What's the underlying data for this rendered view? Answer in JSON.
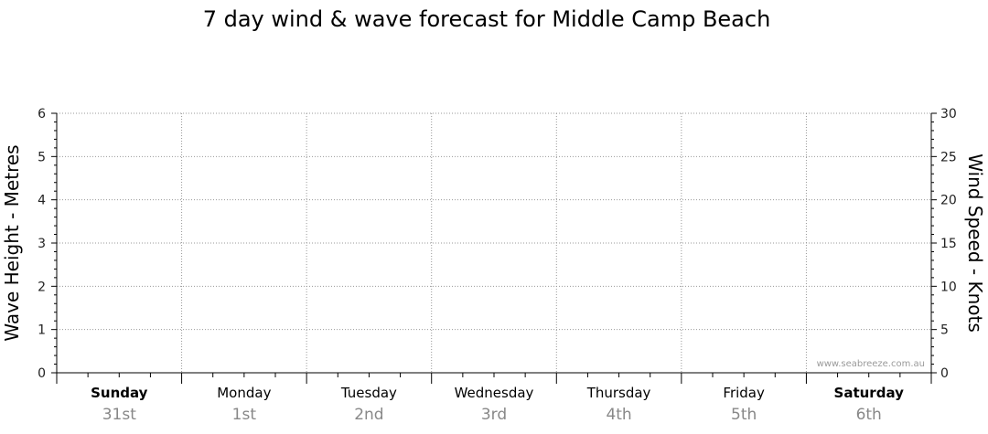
{
  "chart_data": {
    "type": "line",
    "title": "7 day wind & wave forecast for Middle Camp Beach",
    "ylabel_left": "Wave Height - Metres",
    "ylabel_right": "Wind Speed - Knots",
    "y_left_lim": [
      0,
      6
    ],
    "y_left_ticks": [
      "0",
      "1",
      "2",
      "3",
      "4",
      "5",
      "6"
    ],
    "y_right_lim": [
      0,
      30
    ],
    "y_right_ticks": [
      "0",
      "5",
      "10",
      "15",
      "20",
      "25",
      "30"
    ],
    "grid": true,
    "days": [
      {
        "name": "Sunday",
        "date": "31st",
        "bold": true
      },
      {
        "name": "Monday",
        "date": "1st",
        "bold": false
      },
      {
        "name": "Tuesday",
        "date": "2nd",
        "bold": false
      },
      {
        "name": "Wednesday",
        "date": "3rd",
        "bold": false
      },
      {
        "name": "Thursday",
        "date": "4th",
        "bold": false
      },
      {
        "name": "Friday",
        "date": "5th",
        "bold": false
      },
      {
        "name": "Saturday",
        "date": "6th",
        "bold": true
      }
    ],
    "series": [],
    "watermark": "www.seabreeze.com.au"
  }
}
